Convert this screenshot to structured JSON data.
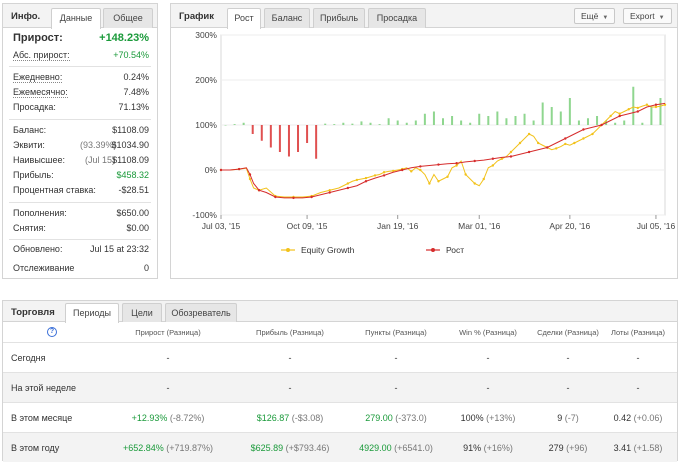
{
  "info": {
    "title": "Инфо.",
    "tabs": [
      "Данные",
      "Общее"
    ],
    "gain_label": "Прирост:",
    "gain_value": "+148.23%",
    "abs_gain_label": "Абс. прирост:",
    "abs_gain_value": "+70.54%",
    "daily_label": "Ежедневно:",
    "daily_value": "0.24%",
    "monthly_label": "Ежемесячно:",
    "monthly_value": "7.48%",
    "drawdown_label": "Просадка:",
    "drawdown_value": "71.13%",
    "balance_label": "Баланс:",
    "balance_value": "$1108.09",
    "equity_label": "Эквити:",
    "equity_pct": "(93.39%)",
    "equity_value": "$1034.90",
    "highest_label": "Наивысшее:",
    "highest_date": "(Jul 15)",
    "highest_value": "$1108.09",
    "profit_label": "Прибыль:",
    "profit_value": "$458.32",
    "interest_label": "Процентная ставка:",
    "interest_value": "-$28.51",
    "deposits_label": "Пополнения:",
    "deposits_value": "$650.00",
    "withdrawals_label": "Снятия:",
    "withdrawals_value": "$0.00",
    "updated_label": "Обновлено:",
    "updated_value": "Jul 15 at 23:32",
    "tracking_label": "Отслеживание",
    "tracking_value": "0"
  },
  "graph": {
    "title": "График",
    "tabs": [
      "Рост",
      "Баланс",
      "Прибыль",
      "Просадка"
    ],
    "menu_label": "Ещё",
    "export_label": "Export",
    "colors": {
      "equity": "#f2c21b",
      "growth": "#d62c2c",
      "bar_pos": "#8fd68f",
      "bar_neg": "#e05050"
    },
    "chart_data": {
      "type": "line",
      "x_ticks": [
        "Jul 03, '15",
        "Oct 09, '15",
        "Jan 19, '16",
        "Mar 01, '16",
        "Apr 20, '16",
        "Jul 05, '16"
      ],
      "y_ticks": [
        "300%",
        "200%",
        "100%",
        "0%",
        "-100%"
      ],
      "ylim": [
        -100,
        300
      ],
      "series": [
        {
          "name": "Equity Growth",
          "x": [
            0,
            10,
            20,
            28,
            32,
            36,
            42,
            50,
            60,
            70,
            80,
            90,
            100,
            110,
            120,
            130,
            140,
            145,
            150,
            155,
            160,
            165,
            170,
            175,
            180,
            185,
            190,
            195,
            200,
            205,
            210,
            215,
            220,
            225,
            230,
            235,
            240,
            245,
            250,
            255,
            260,
            265,
            270,
            275,
            280,
            285,
            290,
            295,
            300,
            305,
            310,
            315,
            320,
            325,
            330,
            335,
            340,
            345,
            350,
            355,
            360,
            365,
            370,
            375,
            380,
            385,
            390,
            395,
            400,
            405,
            410,
            415,
            420,
            425,
            430,
            435,
            440,
            445,
            450,
            455,
            460,
            465,
            470,
            475,
            480,
            485,
            490
          ],
          "values": [
            0,
            0,
            2,
            4,
            -20,
            -40,
            -45,
            -40,
            -58,
            -60,
            -60,
            -60,
            -58,
            -50,
            -45,
            -40,
            -30,
            -25,
            -22,
            -20,
            -18,
            -15,
            -12,
            -10,
            -5,
            -3,
            -2,
            0,
            2,
            5,
            -3,
            5,
            0,
            -10,
            -30,
            -10,
            -25,
            -20,
            -15,
            5,
            10,
            20,
            -10,
            -20,
            -30,
            -35,
            -20,
            5,
            10,
            20,
            25,
            30,
            40,
            50,
            60,
            70,
            80,
            75,
            60,
            55,
            50,
            45,
            48,
            52,
            58,
            55,
            60,
            65,
            70,
            75,
            80,
            90,
            100,
            110,
            120,
            130,
            125,
            130,
            135,
            140,
            138,
            142,
            145,
            140,
            140,
            142,
            145
          ]
        },
        {
          "name": "Рост",
          "x": [
            0,
            10,
            20,
            28,
            32,
            36,
            42,
            50,
            60,
            70,
            80,
            90,
            100,
            110,
            120,
            130,
            140,
            150,
            160,
            170,
            180,
            190,
            200,
            210,
            220,
            230,
            240,
            250,
            260,
            270,
            280,
            290,
            300,
            310,
            320,
            330,
            340,
            350,
            360,
            370,
            380,
            390,
            400,
            410,
            420,
            430,
            440,
            450,
            460,
            470,
            480,
            490
          ],
          "values": [
            0,
            0,
            2,
            5,
            -10,
            -30,
            -45,
            -50,
            -60,
            -62,
            -62,
            -62,
            -60,
            -55,
            -50,
            -45,
            -40,
            -35,
            -25,
            -18,
            -12,
            -5,
            0,
            5,
            8,
            10,
            12,
            14,
            15,
            18,
            20,
            22,
            25,
            28,
            30,
            35,
            40,
            45,
            50,
            60,
            70,
            80,
            90,
            95,
            100,
            110,
            120,
            125,
            130,
            140,
            145,
            148
          ]
        }
      ],
      "bars": {
        "x": [
          5,
          15,
          25,
          35,
          45,
          55,
          65,
          75,
          85,
          95,
          105,
          115,
          125,
          135,
          145,
          155,
          165,
          175,
          185,
          195,
          205,
          215,
          225,
          235,
          245,
          255,
          265,
          275,
          285,
          295,
          305,
          315,
          325,
          335,
          345,
          355,
          365,
          375,
          385,
          395,
          405,
          415,
          425,
          435,
          445,
          455,
          465,
          475,
          485
        ],
        "values": [
          0,
          2,
          5,
          -20,
          -35,
          -50,
          -60,
          -70,
          -60,
          -40,
          -75,
          3,
          2,
          5,
          3,
          8,
          5,
          2,
          15,
          10,
          5,
          10,
          25,
          30,
          15,
          20,
          10,
          5,
          25,
          20,
          30,
          15,
          20,
          25,
          10,
          50,
          40,
          30,
          60,
          10,
          15,
          20,
          10,
          5,
          10,
          85,
          5,
          40,
          60
        ]
      }
    },
    "legend": [
      "Equity Growth",
      "Рост"
    ]
  },
  "trading": {
    "title": "Торговля",
    "tabs": [
      "Периоды",
      "Цели",
      "Обозреватель"
    ],
    "help_symbol": "?",
    "columns": [
      "Прирост (Разница)",
      "Прибыль (Разница)",
      "Пункты (Разница)",
      "Win % (Разница)",
      "Сделки (Разница)",
      "Лоты (Разница)"
    ],
    "rows": [
      {
        "label": "Сегодня",
        "gain": "-",
        "gain_diff": "",
        "profit": "-",
        "profit_diff": "",
        "pips": "-",
        "pips_diff": "",
        "win": "-",
        "win_diff": "",
        "trades": "-",
        "trades_diff": "",
        "lots": "-",
        "lots_diff": ""
      },
      {
        "label": "На этой неделе",
        "gain": "-",
        "gain_diff": "",
        "profit": "-",
        "profit_diff": "",
        "pips": "-",
        "pips_diff": "",
        "win": "-",
        "win_diff": "",
        "trades": "-",
        "trades_diff": "",
        "lots": "-",
        "lots_diff": ""
      },
      {
        "label": "В этом месяце",
        "gain": "+12.93%",
        "gain_diff": "(-8.72%)",
        "profit": "$126.87",
        "profit_diff": "(-$3.08)",
        "pips": "279.00",
        "pips_diff": "(-373.0)",
        "win": "100%",
        "win_diff": "(+13%)",
        "trades": "9",
        "trades_diff": "(-7)",
        "lots": "0.42",
        "lots_diff": "(+0.06)"
      },
      {
        "label": "В этом году",
        "gain": "+652.84%",
        "gain_diff": "(+719.87%)",
        "profit": "$625.89",
        "profit_diff": "(+$793.46)",
        "pips": "4929.00",
        "pips_diff": "(+6541.0)",
        "win": "91%",
        "win_diff": "(+16%)",
        "trades": "279",
        "trades_diff": "(+96)",
        "lots": "3.41",
        "lots_diff": "(+1.58)"
      }
    ]
  }
}
